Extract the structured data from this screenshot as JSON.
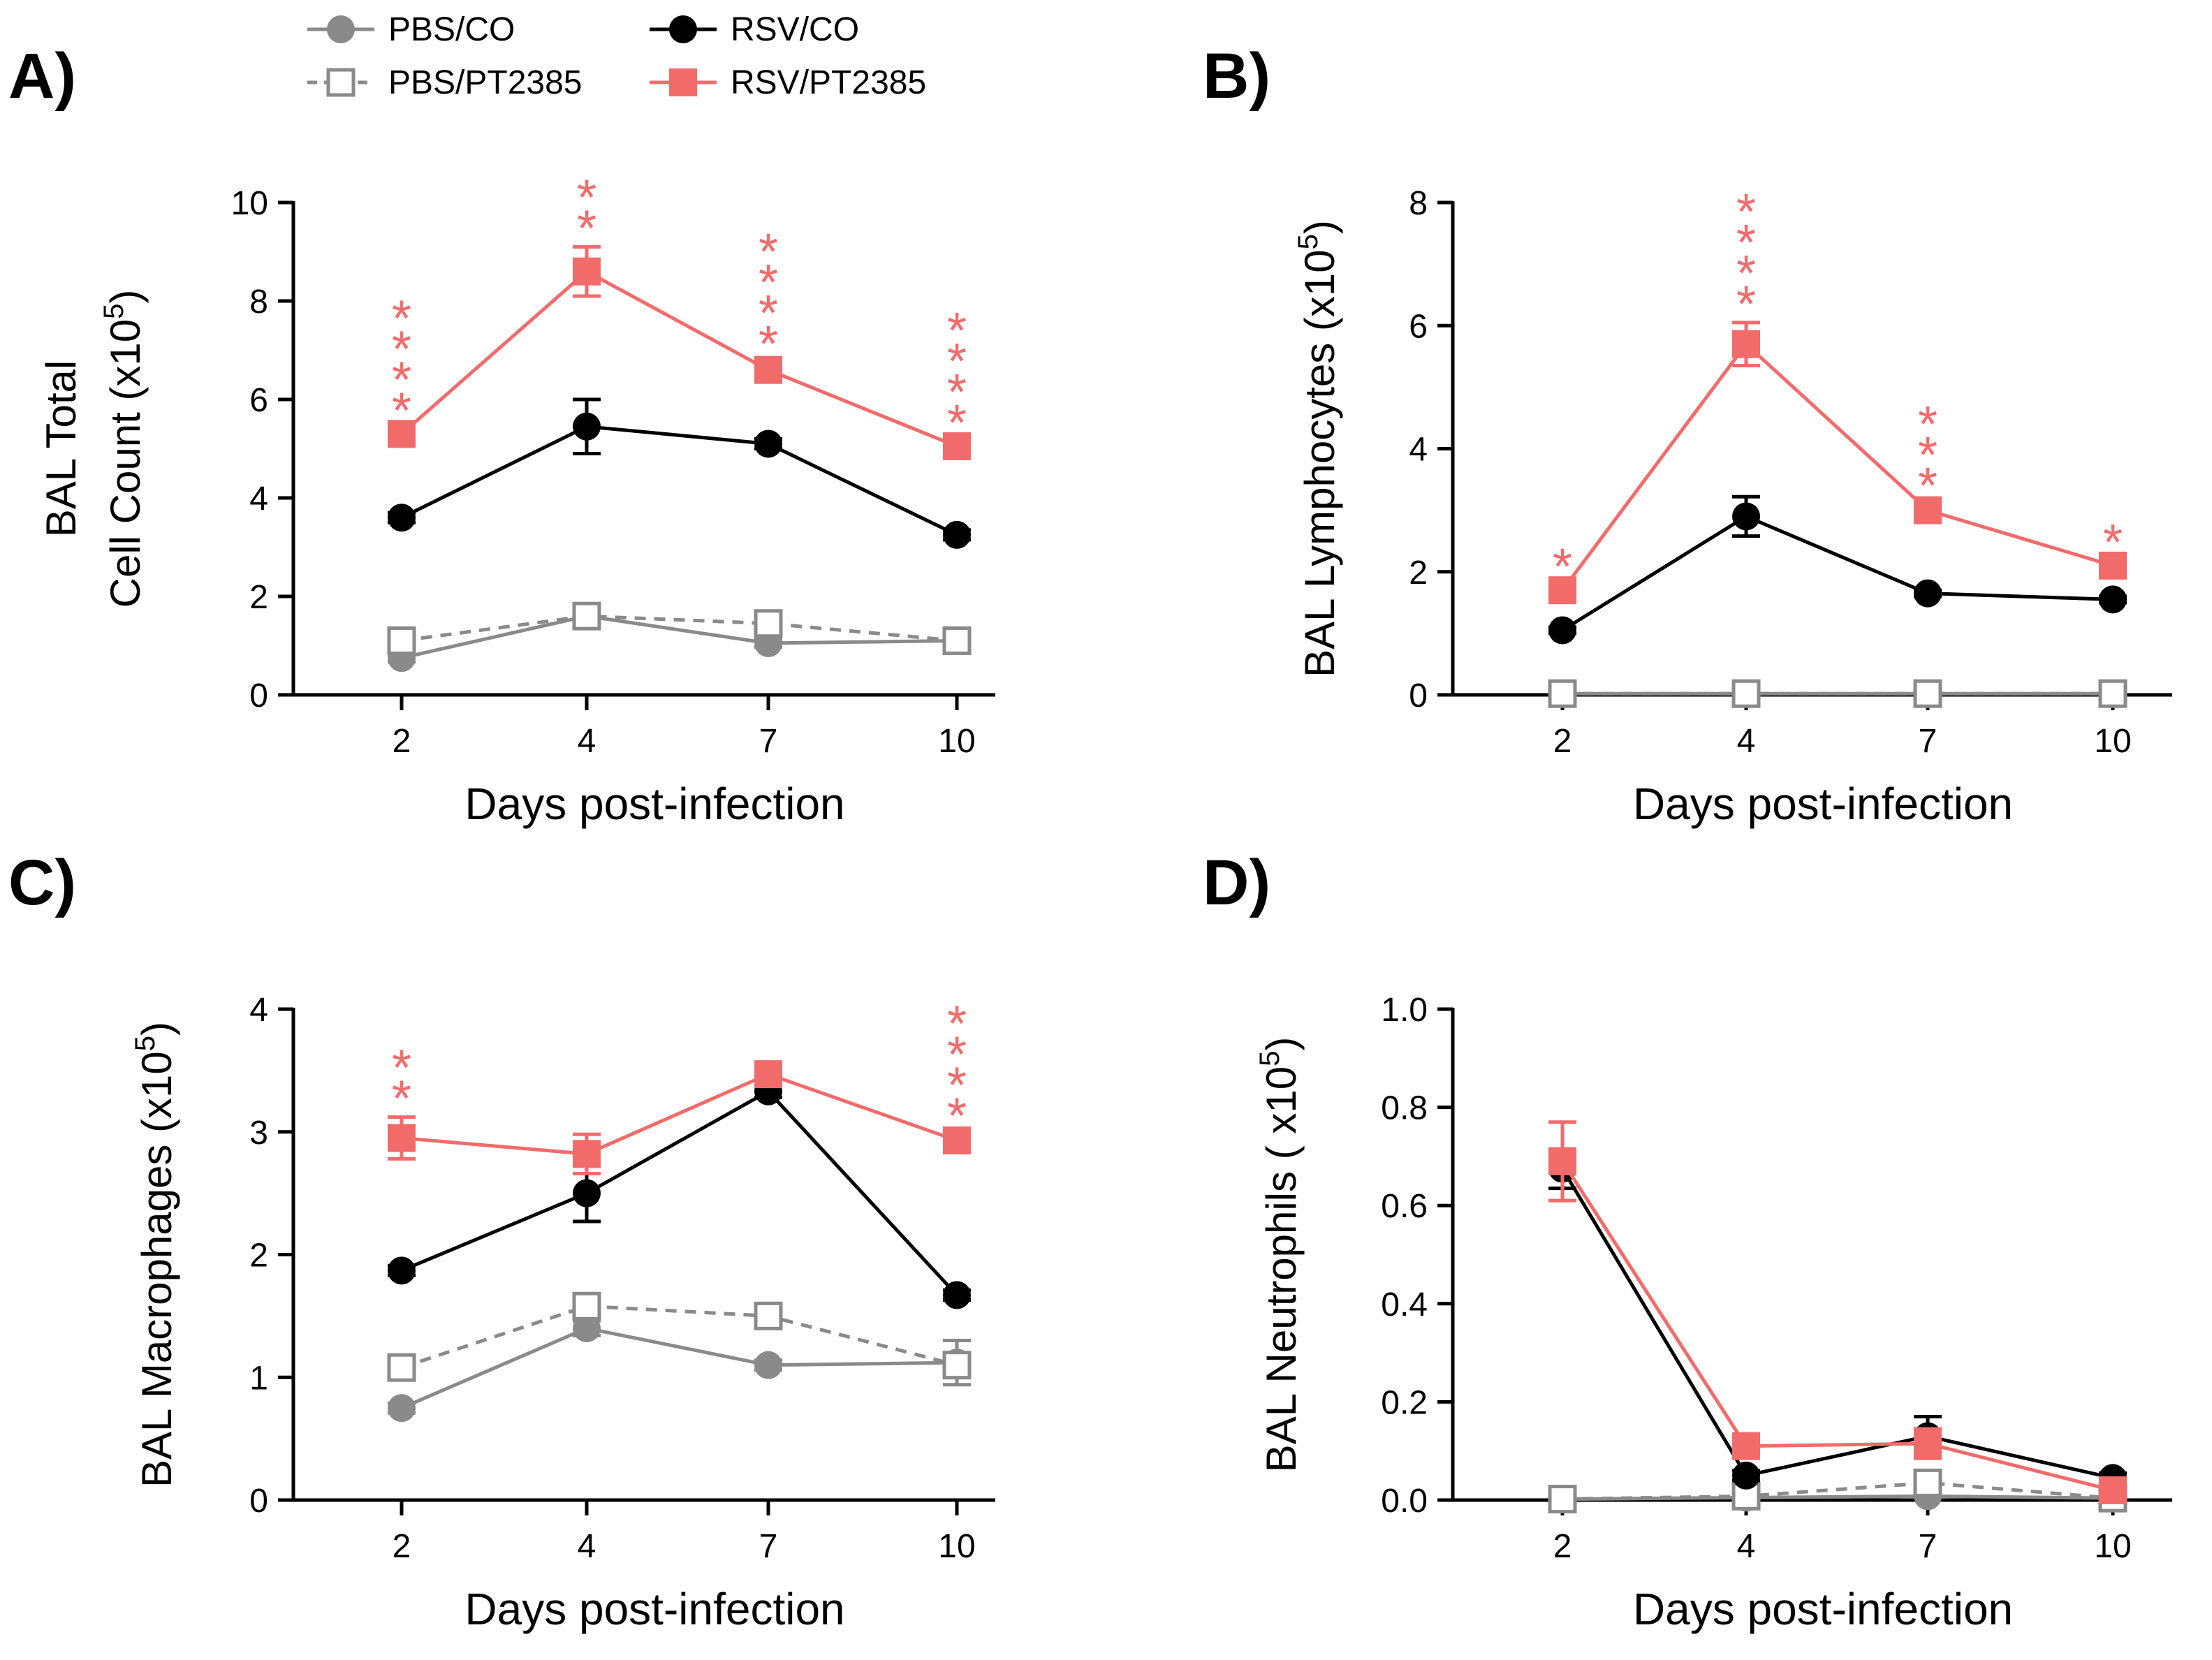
{
  "legend": {
    "entries": [
      {
        "key": "pbs_co",
        "label": "PBS/CO"
      },
      {
        "key": "pbs_pt",
        "label": "PBS/PT2385"
      },
      {
        "key": "rsv_co",
        "label": "RSV/CO"
      },
      {
        "key": "rsv_pt",
        "label": "RSV/PT2385"
      }
    ]
  },
  "colors": {
    "pbs_co": "#8a8a8a",
    "pbs_pt": "#8a8a8a",
    "rsv_co": "#000000",
    "rsv_pt": "#f26b6b",
    "axis": "#000000"
  },
  "chart_data": [
    {
      "panel": "A)",
      "type": "line",
      "title": "",
      "xlabel": "Days post-infection",
      "ylabel_line1": "BAL Total",
      "ylabel_line2": "Cell Count (x10",
      "ylabel_sup": "5",
      "ylabel_tail": ")",
      "categories": [
        "2",
        "4",
        "7",
        "10"
      ],
      "yticks": [
        0,
        2,
        4,
        6,
        8,
        10
      ],
      "ytick_labels": [
        "0",
        "2",
        "4",
        "6",
        "8",
        "10"
      ],
      "ylim": [
        0,
        10
      ],
      "series": [
        {
          "key": "pbs_co",
          "name": "PBS/CO",
          "values": [
            0.75,
            1.6,
            1.05,
            1.1
          ],
          "errors": [
            0.08,
            0.12,
            0.08,
            0.08
          ]
        },
        {
          "key": "pbs_pt",
          "name": "PBS/PT2385",
          "values": [
            1.1,
            1.6,
            1.45,
            1.1
          ],
          "errors": [
            0.08,
            0.12,
            0.08,
            0.08
          ]
        },
        {
          "key": "rsv_co",
          "name": "RSV/CO",
          "values": [
            3.6,
            5.45,
            5.1,
            3.25
          ],
          "errors": [
            0.1,
            0.55,
            0.1,
            0.1
          ]
        },
        {
          "key": "rsv_pt",
          "name": "RSV/PT2385",
          "values": [
            5.3,
            8.6,
            6.6,
            5.05
          ],
          "errors": [
            0.1,
            0.5,
            0.15,
            0.1
          ]
        }
      ],
      "significance": [
        "****",
        "**",
        "****",
        "****"
      ]
    },
    {
      "panel": "B)",
      "type": "line",
      "title": "",
      "xlabel": "Days post-infection",
      "ylabel_line1": "",
      "ylabel_line2": "BAL Lymphocytes (x10",
      "ylabel_sup": "5",
      "ylabel_tail": ")",
      "categories": [
        "2",
        "4",
        "7",
        "10"
      ],
      "yticks": [
        0,
        2,
        4,
        6,
        8
      ],
      "ytick_labels": [
        "0",
        "2",
        "4",
        "6",
        "8"
      ],
      "ylim": [
        0,
        8
      ],
      "series": [
        {
          "key": "pbs_co",
          "name": "PBS/CO",
          "values": [
            0.02,
            0.02,
            0.02,
            0.02
          ],
          "errors": [
            0,
            0,
            0,
            0
          ]
        },
        {
          "key": "pbs_pt",
          "name": "PBS/PT2385",
          "values": [
            0.02,
            0.02,
            0.02,
            0.02
          ],
          "errors": [
            0,
            0,
            0,
            0
          ]
        },
        {
          "key": "rsv_co",
          "name": "RSV/CO",
          "values": [
            1.05,
            2.9,
            1.65,
            1.55
          ],
          "errors": [
            0.05,
            0.32,
            0.05,
            0.05
          ]
        },
        {
          "key": "rsv_pt",
          "name": "RSV/PT2385",
          "values": [
            1.7,
            5.7,
            3.0,
            2.1
          ],
          "errors": [
            0.08,
            0.35,
            0.1,
            0.08
          ]
        }
      ],
      "significance": [
        "*",
        "****",
        "***",
        "*"
      ]
    },
    {
      "panel": "C)",
      "type": "line",
      "title": "",
      "xlabel": "Days post-infection",
      "ylabel_line1": "",
      "ylabel_line2": "BAL Macrophages (x10",
      "ylabel_sup": "5",
      "ylabel_tail": ")",
      "categories": [
        "2",
        "4",
        "7",
        "10"
      ],
      "yticks": [
        0,
        1,
        2,
        3,
        4
      ],
      "ytick_labels": [
        "0",
        "1",
        "2",
        "3",
        "4"
      ],
      "ylim": [
        0,
        4
      ],
      "series": [
        {
          "key": "pbs_co",
          "name": "PBS/CO",
          "values": [
            0.75,
            1.4,
            1.1,
            1.12
          ],
          "errors": [
            0.04,
            0.06,
            0.04,
            0.18
          ]
        },
        {
          "key": "pbs_pt",
          "name": "PBS/PT2385",
          "values": [
            1.08,
            1.58,
            1.5,
            1.1
          ],
          "errors": [
            0.05,
            0.1,
            0.06,
            0.06
          ]
        },
        {
          "key": "rsv_co",
          "name": "RSV/CO",
          "values": [
            1.87,
            2.5,
            3.33,
            1.67
          ],
          "errors": [
            0.04,
            0.23,
            0.05,
            0.04
          ]
        },
        {
          "key": "rsv_pt",
          "name": "RSV/PT2385",
          "values": [
            2.95,
            2.82,
            3.47,
            2.93
          ],
          "errors": [
            0.17,
            0.16,
            0.06,
            0.05
          ]
        }
      ],
      "significance": [
        "**",
        "",
        "",
        "****"
      ]
    },
    {
      "panel": "D)",
      "type": "line",
      "title": "",
      "xlabel": "Days post-infection",
      "ylabel_line1": "",
      "ylabel_line2": "BAL Neutrophils ( x10",
      "ylabel_sup": "5",
      "ylabel_tail": ")",
      "categories": [
        "2",
        "4",
        "7",
        "10"
      ],
      "yticks": [
        0,
        0.2,
        0.4,
        0.6,
        0.8,
        1.0
      ],
      "ytick_labels": [
        "0.0",
        "0.2",
        "0.4",
        "0.6",
        "0.8",
        "1.0"
      ],
      "ylim": [
        0,
        1
      ],
      "series": [
        {
          "key": "pbs_co",
          "name": "PBS/CO",
          "values": [
            0.002,
            0.005,
            0.008,
            0.004
          ],
          "errors": [
            0,
            0,
            0,
            0
          ]
        },
        {
          "key": "pbs_pt",
          "name": "PBS/PT2385",
          "values": [
            0.002,
            0.008,
            0.035,
            0.004
          ],
          "errors": [
            0,
            0,
            0.01,
            0
          ]
        },
        {
          "key": "rsv_co",
          "name": "RSV/CO",
          "values": [
            0.675,
            0.05,
            0.13,
            0.045
          ],
          "errors": [
            0.04,
            0.01,
            0.04,
            0.01
          ]
        },
        {
          "key": "rsv_pt",
          "name": "RSV/PT2385",
          "values": [
            0.69,
            0.11,
            0.115,
            0.02
          ],
          "errors": [
            0.08,
            0.01,
            0.03,
            0.005
          ]
        }
      ],
      "significance": [
        "",
        "",
        "",
        ""
      ]
    }
  ]
}
